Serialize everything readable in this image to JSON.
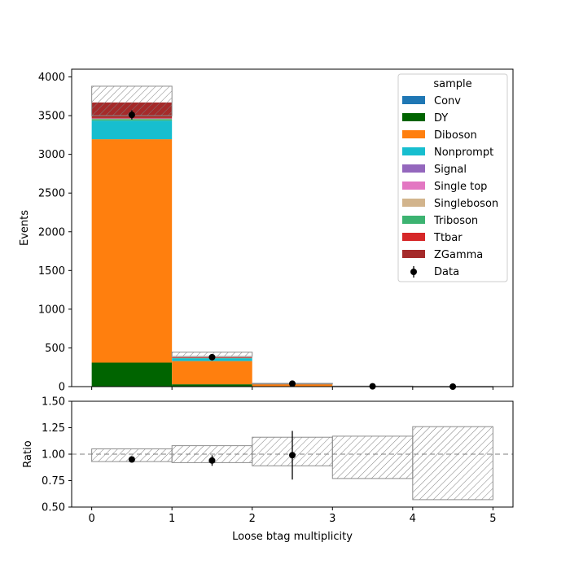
{
  "chart_data": [
    {
      "type": "bar",
      "stacked": true,
      "x_bin_edges": [
        0,
        1,
        2,
        3,
        4,
        5
      ],
      "xlim": [
        -0.25,
        5.25
      ],
      "ylim": [
        0,
        4100
      ],
      "ylabel": "Events",
      "xlabel": "",
      "y_ticks": [
        0,
        500,
        1000,
        1500,
        2000,
        2500,
        3000,
        3500,
        4000
      ],
      "legend": {
        "title": "sample",
        "placement": "top-right"
      },
      "series": [
        {
          "name": "DY",
          "color": "#006400",
          "values": [
            310,
            30,
            5,
            1,
            0
          ]
        },
        {
          "name": "Diboson",
          "color": "#ff7f0e",
          "values": [
            2885,
            300,
            30,
            5,
            1
          ]
        },
        {
          "name": "Nonprompt",
          "color": "#17becf",
          "values": [
            240,
            35,
            2,
            0,
            0
          ]
        },
        {
          "name": "Triboson",
          "color": "#3cb371",
          "values": [
            20,
            5,
            0,
            0,
            0
          ]
        },
        {
          "name": "Singleboson",
          "color": "#d2b48c",
          "values": [
            5,
            0,
            0,
            0,
            0
          ]
        },
        {
          "name": "Signal",
          "color": "#9467bd",
          "values": [
            5,
            0,
            0,
            0,
            0
          ]
        },
        {
          "name": "Ttbar",
          "color": "#d62728",
          "values": [
            10,
            3,
            1,
            0,
            0
          ]
        },
        {
          "name": "ZGamma",
          "color": "#a52a2a",
          "values": [
            195,
            7,
            1,
            0,
            0
          ]
        },
        {
          "name": "Conv",
          "color": "#1f77b4",
          "values": [
            0,
            0,
            0,
            0,
            0
          ]
        },
        {
          "name": "Single top",
          "color": "#e377c2",
          "values": [
            0,
            0,
            0,
            0,
            0
          ]
        }
      ],
      "legend_order": [
        "Conv",
        "DY",
        "Diboson",
        "Nonprompt",
        "Signal",
        "Single top",
        "Singleboson",
        "Triboson",
        "Ttbar",
        "ZGamma"
      ],
      "uncertainty_band": {
        "low": [
          3500,
          390,
          36,
          5,
          1
        ],
        "high": [
          3880,
          445,
          42,
          7,
          2
        ]
      },
      "data": {
        "name": "Data",
        "x": [
          0.5,
          1.5,
          2.5,
          3.5,
          4.5
        ],
        "y": [
          3510,
          380,
          38,
          4,
          0
        ],
        "yerr": [
          59,
          19,
          6,
          2,
          0
        ]
      }
    },
    {
      "type": "line",
      "xlabel": "Loose btag multiplicity",
      "ylabel": "Ratio",
      "xlim": [
        -0.25,
        5.25
      ],
      "ylim": [
        0.5,
        1.5
      ],
      "x_ticks": [
        0,
        1,
        2,
        3,
        4,
        5
      ],
      "y_ticks": [
        0.5,
        0.75,
        1.0,
        1.25,
        1.5
      ],
      "y_tick_labels": [
        "0.50",
        "0.75",
        "1.00",
        "1.25",
        "1.50"
      ],
      "reference_line": 1.0,
      "uncertainty_band": {
        "low": [
          0.93,
          0.92,
          0.89,
          0.77,
          0.57
        ],
        "high": [
          1.05,
          1.08,
          1.16,
          1.17,
          1.26
        ]
      },
      "points": {
        "x": [
          0.5,
          1.5,
          2.5
        ],
        "y": [
          0.95,
          0.94,
          0.99
        ],
        "yerr": [
          0.02,
          0.05,
          0.23
        ]
      }
    }
  ]
}
